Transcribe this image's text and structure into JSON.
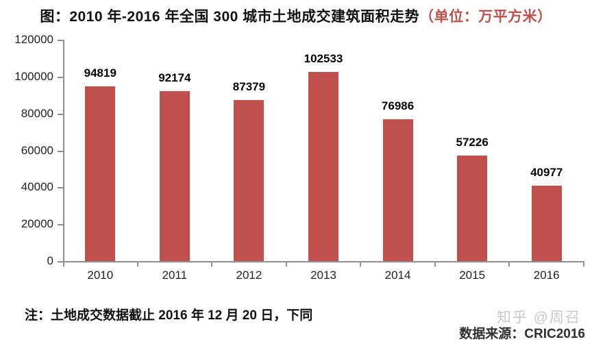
{
  "title": {
    "main": "图：2010 年-2016 年全国 300 城市土地成交建筑面积走势",
    "unit": "（单位：万平方米）"
  },
  "chart_data": {
    "type": "bar",
    "categories": [
      "2010",
      "2011",
      "2012",
      "2013",
      "2014",
      "2015",
      "2016"
    ],
    "values": [
      94819,
      92174,
      87379,
      102533,
      76986,
      57226,
      40977
    ],
    "title": "图：2010 年-2016 年全国 300 城市土地成交建筑面积走势（单位：万平方米）",
    "xlabel": "",
    "ylabel": "",
    "ylim": [
      0,
      120000
    ],
    "yticks": [
      0,
      20000,
      40000,
      60000,
      80000,
      100000,
      120000
    ],
    "grid": false,
    "legend": "none",
    "data_labels": true,
    "bar_color": "#C0504D"
  },
  "note": "注：土地成交数据截止 2016 年 12 月 20 日，下同",
  "watermark": "知乎 @周召",
  "source": "数据来源：CRIC2016",
  "colors": {
    "bar": "#C0504D",
    "axis": "#909090",
    "title_unit": "#C0504D",
    "watermark": "#c9c9c9"
  }
}
